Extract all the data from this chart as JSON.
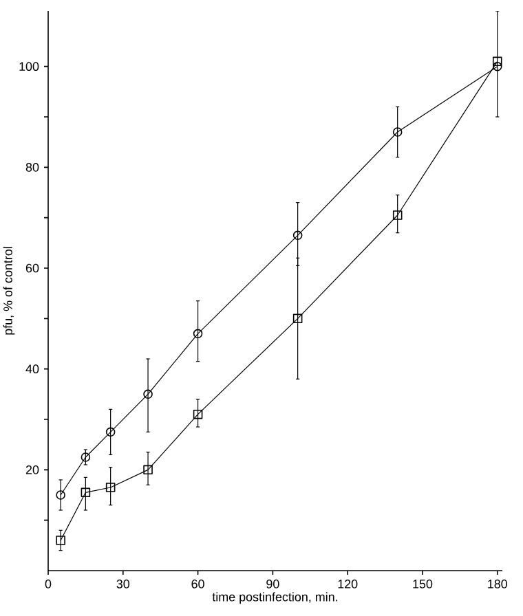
{
  "chart_data": {
    "type": "line",
    "xlabel": "time postinfection, min.",
    "ylabel": "pfu, % of control",
    "xlim": [
      0,
      182
    ],
    "ylim": [
      0,
      111
    ],
    "xticks": [
      0,
      30,
      60,
      90,
      120,
      150,
      180
    ],
    "yticks": [
      {
        "value": 10,
        "label": null
      },
      20,
      {
        "value": 30,
        "label": null
      },
      40,
      {
        "value": 50,
        "label": null
      },
      60,
      {
        "value": 70,
        "label": null
      },
      80,
      {
        "value": 90,
        "label": null
      },
      100
    ],
    "series": [
      {
        "color": "#000000",
        "marker": "circle",
        "x": [
          5,
          15,
          25,
          40,
          60,
          100,
          140,
          180
        ],
        "values": [
          15,
          22.5,
          27.5,
          35,
          47,
          66.5,
          87,
          100
        ],
        "errors": [
          [
            12,
            18
          ],
          [
            21,
            24
          ],
          [
            23,
            32
          ],
          [
            27.5,
            42
          ],
          [
            41.5,
            53.5
          ],
          [
            60.5,
            73
          ],
          [
            82,
            92
          ],
          [
            90,
            111
          ]
        ]
      },
      {
        "color": "#000000",
        "marker": "square",
        "x": [
          5,
          15,
          25,
          40,
          60,
          100,
          140,
          180
        ],
        "values": [
          6,
          15.5,
          16.5,
          20,
          31,
          50,
          70.5,
          101
        ],
        "errors": [
          [
            4,
            8
          ],
          [
            12,
            18.5
          ],
          [
            13,
            20.5
          ],
          [
            17,
            23.5
          ],
          [
            28.5,
            34
          ],
          [
            38,
            62
          ],
          [
            67,
            74.5
          ],
          null
        ]
      }
    ]
  }
}
